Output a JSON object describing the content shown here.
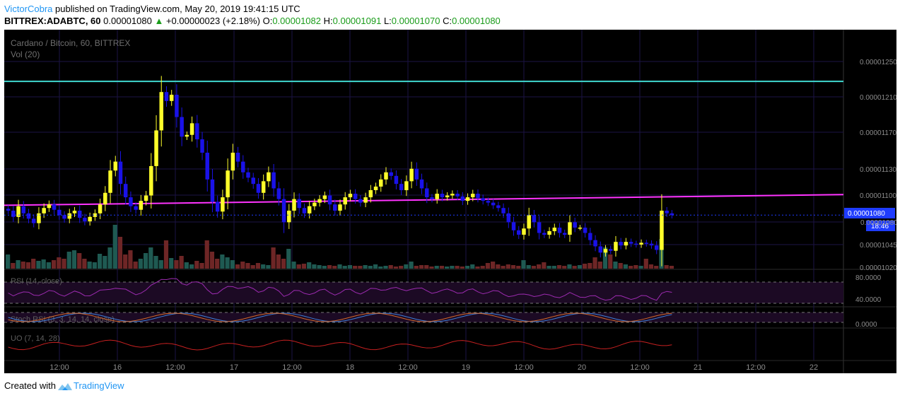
{
  "header": {
    "author": "VictorCobra",
    "published_text": " published on TradingView.com, May 20, 2019 19:41:15 UTC",
    "symbol_interval": "BITTREX:ADABTC, 60",
    "last": "0.00001080",
    "change": "+0.00000023 (+2.18%)",
    "o_label": "O:",
    "o_value": "0.00001082",
    "h_label": "H:",
    "h_value": "0.00001091",
    "l_label": "L:",
    "l_value": "0.00001070",
    "c_label": "C:",
    "c_value": "0.00001080"
  },
  "footer": {
    "created_with": "Created with",
    "brand": "TradingView"
  },
  "colors": {
    "background": "#000000",
    "grid": "#1c1346",
    "up": "#ffff2a",
    "down": "#1a12e8",
    "vol_up": "#1f5a52",
    "vol_down": "#6e2626",
    "resistance": "#40d8d0",
    "trendline": "#ff33ff",
    "rsi": "#9c2bb0",
    "stoch_k": "#3f7fd8",
    "stoch_d": "#d46a2a",
    "uo": "#c62020",
    "axis_text": "#8c8c8c",
    "price_tag": "#1f3cff"
  },
  "chart_data": {
    "type": "candlestick",
    "title": "Cardano / Bitcoin, 60, BITTREX",
    "subtitle": "Vol (20)",
    "ylim": [
      1.02e-05,
      1.28e-05
    ],
    "y_ticks": [
      "0.00001250",
      "0.00001210",
      "0.00001170",
      "0.00001130",
      "0.00001100",
      "0.00001080",
      "0.00001045",
      "0.00001020"
    ],
    "x_ticks": [
      "12:00",
      "16",
      "12:00",
      "17",
      "12:00",
      "18",
      "12:00",
      "19",
      "12:00",
      "20",
      "12:00",
      "21",
      "12:00",
      "22"
    ],
    "last_price_label": "0.00001080",
    "countdown_label": "18:46",
    "resistance_level": 1.23e-05,
    "trendline": {
      "from": [
        0,
        1.091e-05
      ],
      "to": [
        1,
        1.103e-05
      ]
    },
    "closes": [
      1.085e-05,
      1.078e-05,
      1.09e-05,
      1.082e-05,
      1.076e-05,
      1.071e-05,
      1.082e-05,
      1.088e-05,
      1.092e-05,
      1.086e-05,
      1.08e-05,
      1.076e-05,
      1.082e-05,
      1.085e-05,
      1.077e-05,
      1.073e-05,
      1.078e-05,
      1.082e-05,
      1.092e-05,
      1.105e-05,
      1.13e-05,
      1.14e-05,
      1.115e-05,
      1.1e-05,
      1.09e-05,
      1.086e-05,
      1.096e-05,
      1.102e-05,
      1.135e-05,
      1.175e-05,
      1.218e-05,
      1.208e-05,
      1.215e-05,
      1.19e-05,
      1.168e-05,
      1.17e-05,
      1.183e-05,
      1.165e-05,
      1.15e-05,
      1.12e-05,
      1.095e-05,
      1.084e-05,
      1.1e-05,
      1.13e-05,
      1.15e-05,
      1.14e-05,
      1.128e-05,
      1.122e-05,
      1.115e-05,
      1.105e-05,
      1.118e-05,
      1.128e-05,
      1.11e-05,
      1.098e-05,
      1.072e-05,
      1.085e-05,
      1.098e-05,
      1.088e-05,
      1.082e-05,
      1.09e-05,
      1.094e-05,
      1.098e-05,
      1.102e-05,
      1.092e-05,
      1.085e-05,
      1.092e-05,
      1.1e-05,
      1.104e-05,
      1.098e-05,
      1.094e-05,
      1.1e-05,
      1.108e-05,
      1.112e-05,
      1.12e-05,
      1.128e-05,
      1.124e-05,
      1.115e-05,
      1.108e-05,
      1.118e-05,
      1.132e-05,
      1.12e-05,
      1.11e-05,
      1.1e-05,
      1.098e-05,
      1.104e-05,
      1.1e-05,
      1.102e-05,
      1.104e-05,
      1.101e-05,
      1.096e-05,
      1.1e-05,
      1.104e-05,
      1.099e-05,
      1.096e-05,
      1.094e-05,
      1.091e-05,
      1.088e-05,
      1.082e-05,
      1.072e-05,
      1.063e-05,
      1.058e-05,
      1.065e-05,
      1.08e-05,
      1.072e-05,
      1.06e-05,
      1.058e-05,
      1.062e-05,
      1.066e-05,
      1.06e-05,
      1.058e-05,
      1.072e-05,
      1.066e-05,
      1.066e-05,
      1.06e-05,
      1.052e-05,
      1.045e-05,
      1.038e-05,
      1.042e-05,
      1.04e-05,
      1.05e-05,
      1.046e-05,
      1.05e-05,
      1.048e-05,
      1.047e-05,
      1.049e-05,
      1.048e-05,
      1.046e-05,
      1.041e-05,
      1.085e-05,
      1.082e-05,
      1.08e-05
    ],
    "volumes": [
      20,
      8,
      12,
      10,
      9,
      14,
      11,
      13,
      9,
      12,
      16,
      14,
      24,
      26,
      22,
      14,
      10,
      9,
      21,
      18,
      30,
      62,
      45,
      20,
      26,
      10,
      14,
      22,
      30,
      18,
      12,
      40,
      15,
      12,
      18,
      9,
      6,
      11,
      8,
      40,
      24,
      14,
      20,
      16,
      12,
      6,
      10,
      8,
      5,
      8,
      6,
      5,
      30,
      20,
      14,
      28,
      10,
      6,
      7,
      9,
      6,
      5,
      4,
      5,
      4,
      6,
      4,
      5,
      4,
      4,
      5,
      4,
      6,
      3,
      4,
      5,
      3,
      4,
      6,
      10,
      4,
      5,
      5,
      3,
      4,
      4,
      3,
      4,
      4,
      3,
      4,
      6,
      3,
      4,
      8,
      10,
      6,
      4,
      6,
      5,
      4,
      12,
      5,
      4,
      6,
      9,
      4,
      4,
      5,
      4,
      6,
      4,
      5,
      7,
      8,
      16,
      10,
      30,
      20,
      10,
      8,
      6,
      4,
      5,
      4,
      14,
      6,
      4,
      42,
      5,
      4
    ],
    "rsi": {
      "label": "RSI (14, close)",
      "levels": [
        70,
        30
      ],
      "ticks": [
        "80.0000",
        "40.0000"
      ]
    },
    "stoch_rsi": {
      "label": "Stoch RSI (3, 3, 14, 14, close)",
      "ticks": [
        "0.0000"
      ]
    },
    "uo": {
      "label": "UO (7, 14, 28)"
    }
  }
}
